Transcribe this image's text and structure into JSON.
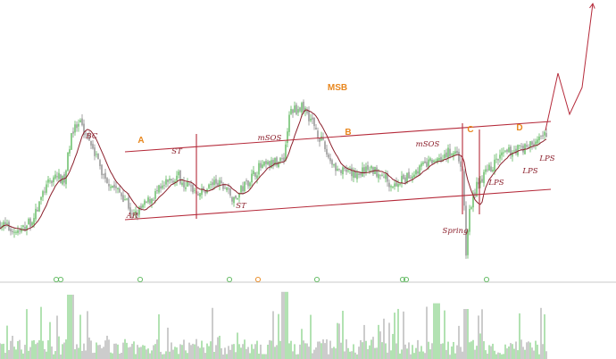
{
  "chart_data": {
    "type": "candlestick-with-volume",
    "grid": false,
    "legend": "none",
    "colors": {
      "up": "#5cb85c",
      "down": "#8c8c8c",
      "ma": "#8b1f2b",
      "channel": "#b52a3a",
      "phase_label": "#e8871e",
      "event_label": "#8b1f2b",
      "volume_up": "#7fcf7f",
      "volume_down": "#a9a9a9",
      "separator": "#c8c8c8"
    },
    "phase_labels": [
      {
        "text": "A",
        "bar": 158
      },
      {
        "text": "B",
        "bar": 390
      },
      {
        "text": "C",
        "bar": 527
      },
      {
        "text": "D",
        "bar": 582
      },
      {
        "text": "MSB",
        "bar": 378
      }
    ],
    "event_labels": [
      {
        "text": "BC",
        "bar": 103,
        "pos": "above"
      },
      {
        "text": "ST",
        "bar": 198,
        "pos": "above"
      },
      {
        "text": "AR",
        "bar": 148,
        "pos": "below"
      },
      {
        "text": "ST",
        "bar": 270,
        "pos": "below"
      },
      {
        "text": "mSOS",
        "bar": 302,
        "pos": "above"
      },
      {
        "text": "mSOS",
        "bar": 479,
        "pos": "above"
      },
      {
        "text": "Spring",
        "bar": 510,
        "pos": "below"
      },
      {
        "text": "LPS",
        "bar": 556,
        "pos": "below"
      },
      {
        "text": "LPS",
        "bar": 594,
        "pos": "below"
      },
      {
        "text": "LPS",
        "bar": 613,
        "pos": "below"
      }
    ],
    "event_markers": [
      {
        "bar": 63,
        "color": "#5cb85c"
      },
      {
        "bar": 68,
        "color": "#5cb85c"
      },
      {
        "bar": 157,
        "color": "#5cb85c"
      },
      {
        "bar": 257,
        "color": "#5cb85c"
      },
      {
        "bar": 289,
        "color": "#e8871e"
      },
      {
        "bar": 355,
        "color": "#5cb85c"
      },
      {
        "bar": 451,
        "color": "#5cb85c"
      },
      {
        "bar": 455,
        "color": "#5cb85c"
      },
      {
        "bar": 545,
        "color": "#5cb85c"
      }
    ],
    "price_anchors": [
      [
        0,
        85
      ],
      [
        10,
        82
      ],
      [
        22,
        80
      ],
      [
        38,
        88
      ],
      [
        50,
        104
      ],
      [
        62,
        112
      ],
      [
        72,
        108
      ],
      [
        80,
        136
      ],
      [
        90,
        140
      ],
      [
        103,
        130
      ],
      [
        115,
        112
      ],
      [
        130,
        104
      ],
      [
        142,
        98
      ],
      [
        148,
        88
      ],
      [
        160,
        94
      ],
      [
        175,
        102
      ],
      [
        198,
        112
      ],
      [
        210,
        106
      ],
      [
        225,
        102
      ],
      [
        240,
        108
      ],
      [
        255,
        104
      ],
      [
        262,
        97
      ],
      [
        272,
        105
      ],
      [
        290,
        116
      ],
      [
        305,
        118
      ],
      [
        318,
        122
      ],
      [
        325,
        148
      ],
      [
        340,
        150
      ],
      [
        352,
        140
      ],
      [
        368,
        122
      ],
      [
        380,
        114
      ],
      [
        395,
        112
      ],
      [
        410,
        115
      ],
      [
        425,
        114
      ],
      [
        440,
        106
      ],
      [
        455,
        110
      ],
      [
        470,
        116
      ],
      [
        485,
        120
      ],
      [
        500,
        124
      ],
      [
        510,
        126
      ],
      [
        518,
        116
      ],
      [
        522,
        68
      ],
      [
        526,
        92
      ],
      [
        535,
        108
      ],
      [
        548,
        115
      ],
      [
        560,
        122
      ],
      [
        575,
        126
      ],
      [
        590,
        128
      ],
      [
        605,
        132
      ],
      [
        612,
        136
      ]
    ],
    "channel_lines": [
      {
        "from": [
          140,
          125
        ],
        "to": [
          617,
          142
        ]
      },
      {
        "from": [
          140,
          87
        ],
        "to": [
          617,
          104
        ]
      }
    ],
    "phase_separators": [
      220,
      518,
      537
    ],
    "projection_path": [
      [
        611,
        137
      ],
      [
        625,
        169
      ],
      [
        638,
        146
      ],
      [
        652,
        161
      ],
      [
        664,
        208
      ]
    ],
    "ylim": [
      60,
      190
    ],
    "xlim": [
      0,
      690
    ],
    "volume_ylim": [
      0,
      100
    ]
  }
}
